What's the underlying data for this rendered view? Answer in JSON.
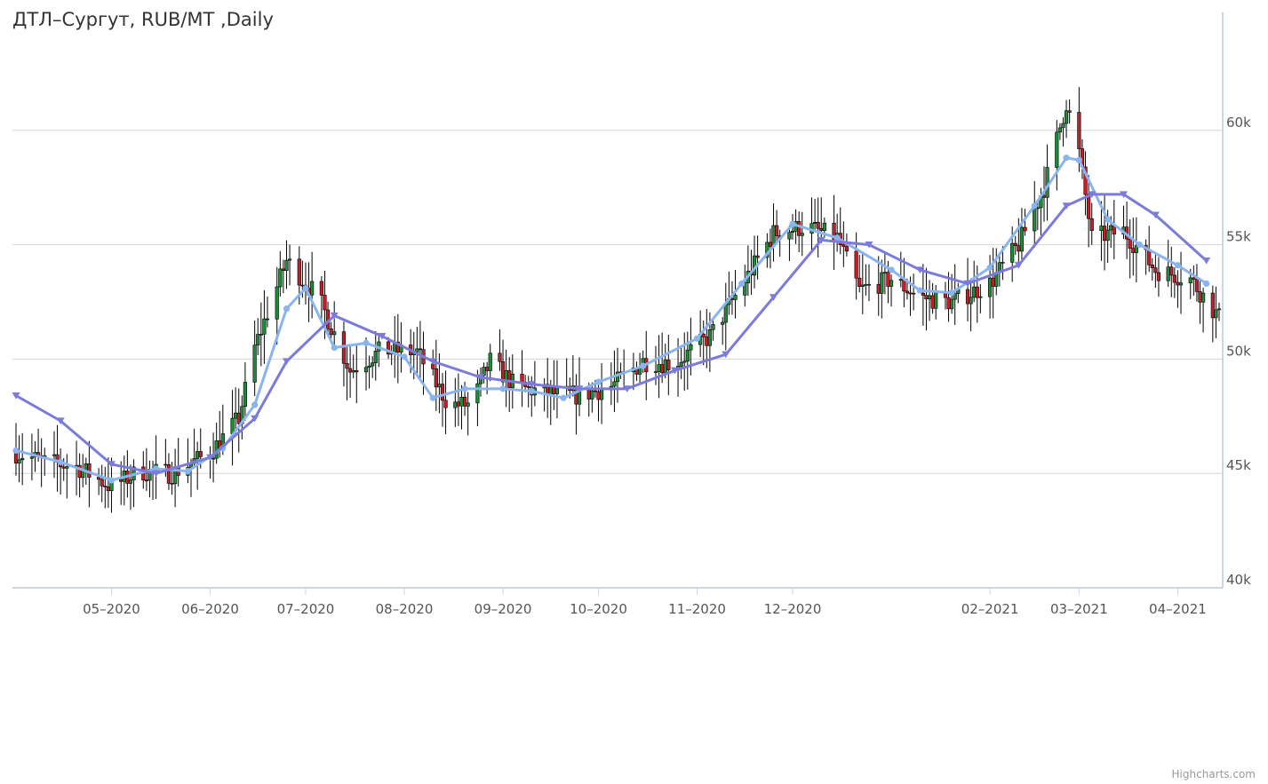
{
  "chart_data": {
    "type": "candlestick",
    "title": "ДТЛ–Сургут, RUB/MT ,Daily",
    "ylim": [
      40000,
      65000
    ],
    "yticks": [
      {
        "value": 40000,
        "label": "40k"
      },
      {
        "value": 45000,
        "label": "45k"
      },
      {
        "value": 50000,
        "label": "50k"
      },
      {
        "value": 55000,
        "label": "55k"
      },
      {
        "value": 60000,
        "label": "60k"
      }
    ],
    "xlim": [
      "2020-04-01",
      "2021-04-14"
    ],
    "xticks": [
      {
        "date": "2020-05-01",
        "label": "05–2020"
      },
      {
        "date": "2020-06-01",
        "label": "06–2020"
      },
      {
        "date": "2020-07-01",
        "label": "07–2020"
      },
      {
        "date": "2020-08-01",
        "label": "08–2020"
      },
      {
        "date": "2020-09-01",
        "label": "09–2020"
      },
      {
        "date": "2020-10-01",
        "label": "10–2020"
      },
      {
        "date": "2020-11-01",
        "label": "11–2020"
      },
      {
        "date": "2020-12-01",
        "label": "12–2020"
      },
      {
        "date": "2021-02-01",
        "label": "02–2021"
      },
      {
        "date": "2021-03-01",
        "label": "03–2021"
      },
      {
        "date": "2021-04-01",
        "label": "04–2021"
      }
    ],
    "grid": true,
    "y_axis_position": "right",
    "ohlc_anchors": [
      [
        "2020-04-01",
        45900
      ],
      [
        "2020-04-10",
        45500
      ],
      [
        "2020-04-20",
        45300
      ],
      [
        "2020-05-01",
        44400
      ],
      [
        "2020-05-10",
        45100
      ],
      [
        "2020-05-20",
        45000
      ],
      [
        "2020-06-01",
        45900
      ],
      [
        "2020-06-10",
        47400
      ],
      [
        "2020-06-15",
        50500
      ],
      [
        "2020-06-25",
        54300
      ],
      [
        "2020-07-05",
        52700
      ],
      [
        "2020-07-15",
        49500
      ],
      [
        "2020-07-25",
        50400
      ],
      [
        "2020-08-05",
        50300
      ],
      [
        "2020-08-15",
        48000
      ],
      [
        "2020-08-22",
        48000
      ],
      [
        "2020-08-28",
        49900
      ],
      [
        "2020-09-05",
        48800
      ],
      [
        "2020-09-15",
        48500
      ],
      [
        "2020-09-25",
        48400
      ],
      [
        "2020-10-05",
        48800
      ],
      [
        "2020-10-15",
        49900
      ],
      [
        "2020-10-25",
        49800
      ],
      [
        "2020-11-05",
        51000
      ],
      [
        "2020-11-15",
        53200
      ],
      [
        "2020-11-25",
        55500
      ],
      [
        "2020-12-05",
        55800
      ],
      [
        "2020-12-15",
        55300
      ],
      [
        "2020-12-22",
        53000
      ],
      [
        "2021-01-01",
        53500
      ],
      [
        "2021-01-10",
        52700
      ],
      [
        "2021-01-20",
        52500
      ],
      [
        "2021-02-01",
        53300
      ],
      [
        "2021-02-10",
        55000
      ],
      [
        "2021-02-18",
        57500
      ],
      [
        "2021-02-25",
        61200
      ],
      [
        "2021-03-01",
        59000
      ],
      [
        "2021-03-05",
        55300
      ],
      [
        "2021-03-15",
        55600
      ],
      [
        "2021-03-25",
        53900
      ],
      [
        "2021-04-05",
        53500
      ],
      [
        "2021-04-14",
        51800
      ]
    ],
    "series": [
      {
        "name": "",
        "kind": "moving-average-short",
        "color": "#8ab4f0",
        "marker": "circle",
        "x": [
          "2020-04-01",
          "2020-04-15",
          "2020-05-01",
          "2020-05-15",
          "2020-05-25",
          "2020-06-05",
          "2020-06-15",
          "2020-06-25",
          "2020-07-01",
          "2020-07-10",
          "2020-07-20",
          "2020-08-01",
          "2020-08-10",
          "2020-08-20",
          "2020-09-01",
          "2020-09-10",
          "2020-09-20",
          "2020-10-01",
          "2020-10-15",
          "2020-11-01",
          "2020-11-15",
          "2020-12-01",
          "2020-12-15",
          "2021-01-01",
          "2021-01-10",
          "2021-01-20",
          "2021-02-01",
          "2021-02-15",
          "2021-02-25",
          "2021-03-01",
          "2021-03-10",
          "2021-03-20",
          "2021-04-01",
          "2021-04-10"
        ],
        "values": [
          46000,
          45500,
          44700,
          45200,
          45100,
          46100,
          48000,
          52200,
          53100,
          50500,
          50700,
          50100,
          48300,
          48700,
          48700,
          48600,
          48300,
          49000,
          49700,
          50900,
          53300,
          55900,
          55300,
          53900,
          53000,
          52900,
          54000,
          56700,
          58800,
          58700,
          56100,
          55000,
          54100,
          53300
        ]
      },
      {
        "name": "",
        "kind": "moving-average-long",
        "color": "#7b7bdc",
        "marker": "triangle-down",
        "x": [
          "2020-04-01",
          "2020-04-15",
          "2020-05-01",
          "2020-05-15",
          "2020-06-01",
          "2020-06-15",
          "2020-06-25",
          "2020-07-10",
          "2020-07-25",
          "2020-08-10",
          "2020-08-25",
          "2020-09-10",
          "2020-09-25",
          "2020-10-10",
          "2020-10-25",
          "2020-11-10",
          "2020-11-25",
          "2020-12-10",
          "2020-12-25",
          "2021-01-10",
          "2021-01-25",
          "2021-02-10",
          "2021-02-25",
          "2021-03-05",
          "2021-03-15",
          "2021-03-25",
          "2021-04-10"
        ],
        "values": [
          48400,
          47300,
          45400,
          45000,
          45700,
          47400,
          49900,
          51900,
          51000,
          49900,
          49200,
          48900,
          48700,
          48700,
          49500,
          50200,
          52700,
          55200,
          55000,
          53900,
          53300,
          54100,
          56700,
          57200,
          57200,
          56300,
          54300
        ]
      }
    ]
  },
  "credits": "Highcharts.com"
}
